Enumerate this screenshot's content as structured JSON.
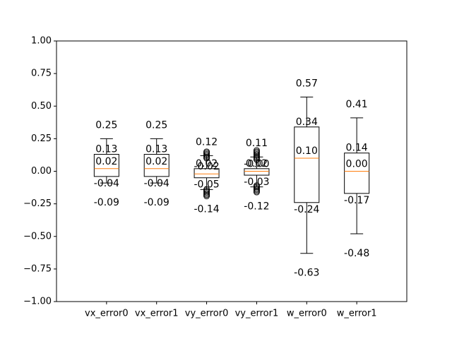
{
  "chart_data": {
    "type": "box",
    "title": "",
    "xlabel": "",
    "ylabel": "",
    "ylim": [
      -1.0,
      1.0
    ],
    "yticks": [
      -1.0,
      -0.75,
      -0.5,
      -0.25,
      0.0,
      0.25,
      0.5,
      0.75,
      1.0
    ],
    "ytick_labels": [
      "−1.00",
      "−0.75",
      "−0.50",
      "−0.25",
      "0.00",
      "0.25",
      "0.50",
      "0.75",
      "1.00"
    ],
    "grid": false,
    "categories": [
      "vx_error0",
      "vx_error1",
      "vy_error0",
      "vy_error1",
      "w_error0",
      "w_error1"
    ],
    "boxes": [
      {
        "name": "vx_error0",
        "whisker_low": -0.09,
        "q1": -0.04,
        "median": 0.02,
        "q3": 0.13,
        "whisker_high": 0.25,
        "labels": {
          "whisker_high": "0.25",
          "q3": "0.13",
          "median": "0.02",
          "q1": "-0.04",
          "whisker_low": "-0.09"
        },
        "fliers": []
      },
      {
        "name": "vx_error1",
        "whisker_low": -0.09,
        "q1": -0.04,
        "median": 0.02,
        "q3": 0.13,
        "whisker_high": 0.25,
        "labels": {
          "whisker_high": "0.25",
          "q3": "0.13",
          "median": "0.02",
          "q1": "-0.04",
          "whisker_low": "-0.09"
        },
        "fliers": []
      },
      {
        "name": "vy_error0",
        "whisker_low": -0.14,
        "q1": -0.05,
        "median": -0.02,
        "q3": 0.02,
        "whisker_high": 0.12,
        "labels": {
          "whisker_high": "0.12",
          "q3": "0.02",
          "median": "-0.02",
          "q1": "-0.05",
          "whisker_low": "-0.14"
        },
        "fliers": [
          0.1,
          0.11,
          0.12,
          0.13,
          0.14,
          0.15,
          -0.14,
          -0.15,
          -0.16,
          -0.17,
          -0.18,
          -0.19
        ]
      },
      {
        "name": "vy_error1",
        "whisker_low": -0.12,
        "q1": -0.03,
        "median": -0.0,
        "q3": 0.02,
        "whisker_high": 0.11,
        "labels": {
          "whisker_high": "0.11",
          "q3": "0.02",
          "median": "-0.00",
          "q1": "-0.03",
          "whisker_low": "-0.12"
        },
        "fliers": [
          0.09,
          0.1,
          0.11,
          0.12,
          0.13,
          0.14,
          0.15,
          0.16,
          -0.11,
          -0.12,
          -0.13,
          -0.14,
          -0.15,
          -0.16
        ]
      },
      {
        "name": "w_error0",
        "whisker_low": -0.63,
        "q1": -0.24,
        "median": 0.1,
        "q3": 0.34,
        "whisker_high": 0.57,
        "labels": {
          "whisker_high": "0.57",
          "q3": "0.34",
          "median": "0.10",
          "q1": "-0.24",
          "whisker_low": "-0.63"
        },
        "fliers": []
      },
      {
        "name": "w_error1",
        "whisker_low": -0.48,
        "q1": -0.17,
        "median": 0.0,
        "q3": 0.14,
        "whisker_high": 0.41,
        "labels": {
          "whisker_high": "0.41",
          "q3": "0.14",
          "median": "0.00",
          "q1": "-0.17",
          "whisker_low": "-0.48"
        },
        "fliers": []
      }
    ],
    "colors": {
      "box": "#000000",
      "median": "#ff7f0e",
      "axis": "#000000",
      "background": "#ffffff"
    }
  }
}
